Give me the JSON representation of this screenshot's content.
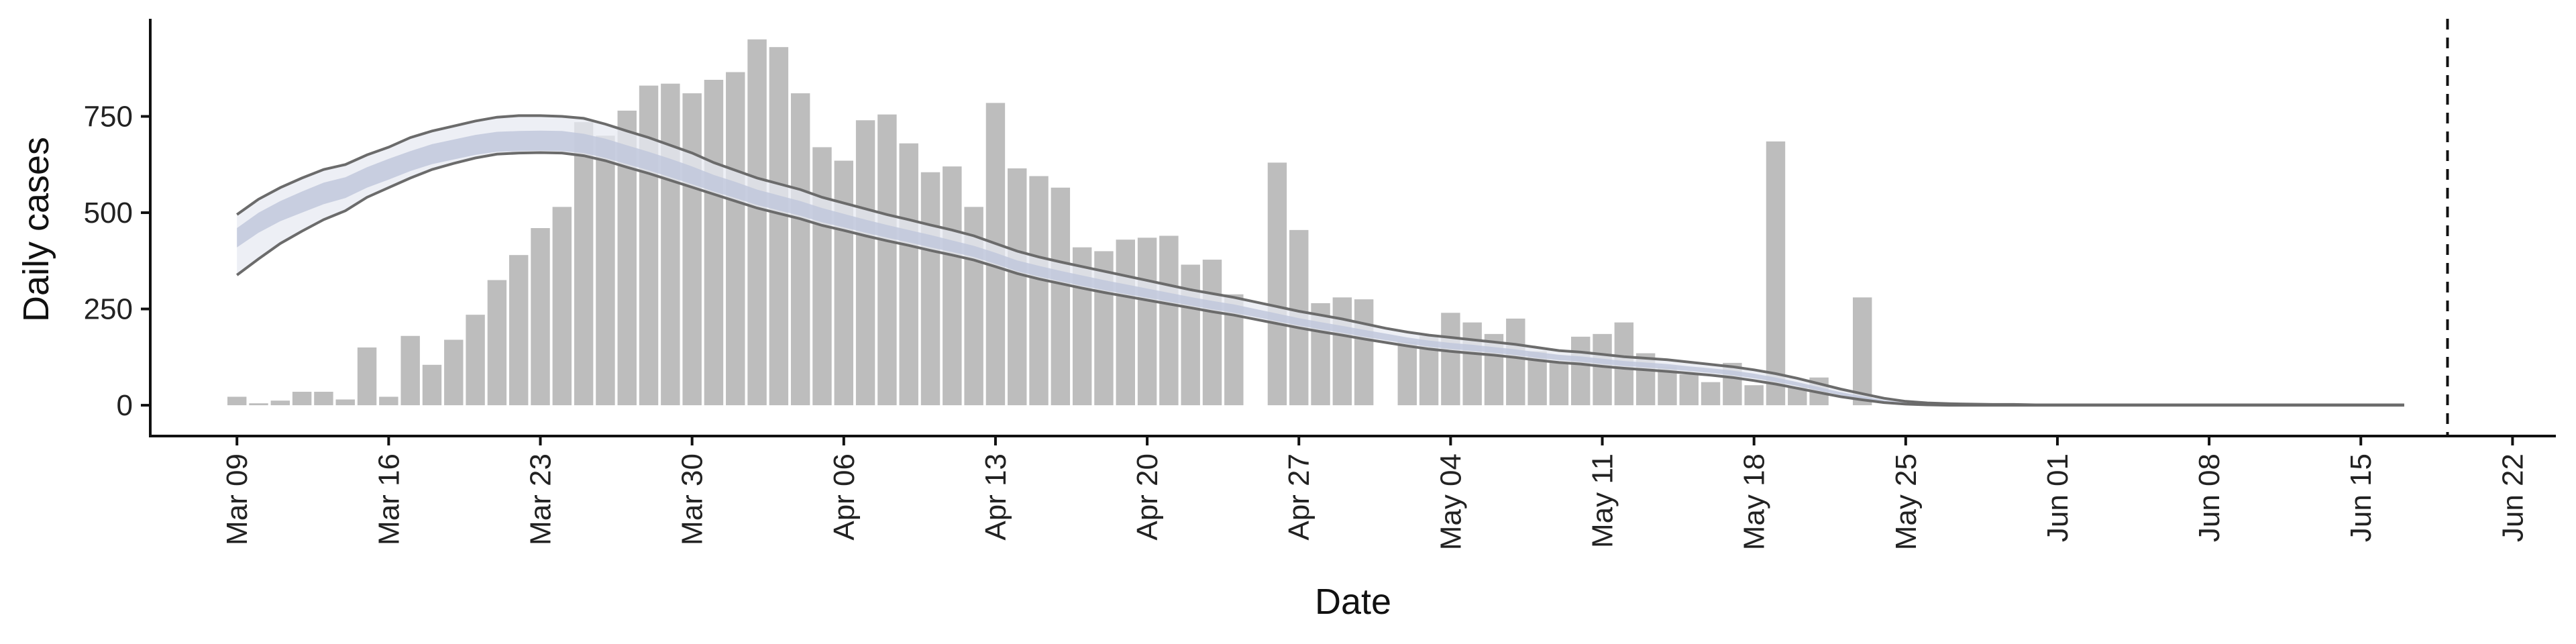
{
  "chart_data": {
    "type": "bar",
    "xlabel": "Date",
    "ylabel": "Daily cases",
    "x_start": "2020-03-09",
    "xlim": [
      "2020-03-05",
      "2020-06-24"
    ],
    "ylim": [
      -80,
      1000
    ],
    "yticks": [
      0,
      250,
      500,
      750
    ],
    "xtick_labels": [
      "Mar 09",
      "Mar 16",
      "Mar 23",
      "Mar 30",
      "Apr 06",
      "Apr 13",
      "Apr 20",
      "Apr 27",
      "May 04",
      "May 11",
      "May 18",
      "May 25",
      "Jun 01",
      "Jun 08",
      "Jun 15",
      "Jun 22"
    ],
    "xtick_dates": [
      "2020-03-09",
      "2020-03-16",
      "2020-03-23",
      "2020-03-30",
      "2020-04-06",
      "2020-04-13",
      "2020-04-20",
      "2020-04-27",
      "2020-05-04",
      "2020-05-11",
      "2020-05-18",
      "2020-05-25",
      "2020-06-01",
      "2020-06-08",
      "2020-06-15",
      "2020-06-22"
    ],
    "vline_date": "2020-06-19",
    "grid": false,
    "legend": "none",
    "colors": {
      "bar": "#bdbdbd",
      "band_outer": "#e7e9f1",
      "band_inner": "#c1c8dc",
      "line": "#6b6b6b",
      "axis": "#111111"
    },
    "bars": [
      22,
      5,
      12,
      35,
      35,
      15,
      150,
      22,
      180,
      105,
      170,
      235,
      325,
      390,
      460,
      515,
      735,
      700,
      765,
      830,
      835,
      810,
      845,
      865,
      950,
      930,
      810,
      670,
      635,
      740,
      755,
      680,
      605,
      620,
      515,
      785,
      615,
      595,
      565,
      410,
      400,
      430,
      435,
      440,
      365,
      378,
      288,
      null,
      630,
      455,
      265,
      280,
      275,
      null,
      165,
      180,
      240,
      215,
      185,
      225,
      140,
      110,
      178,
      185,
      215,
      135,
      100,
      80,
      60,
      110,
      52,
      685,
      48,
      72,
      null,
      280
    ],
    "band_outer_upper": [
      495,
      535,
      565,
      590,
      612,
      625,
      650,
      670,
      695,
      712,
      725,
      738,
      748,
      752,
      752,
      750,
      745,
      730,
      712,
      695,
      675,
      655,
      630,
      610,
      590,
      575,
      560,
      540,
      525,
      510,
      495,
      482,
      468,
      455,
      440,
      420,
      400,
      385,
      372,
      360,
      348,
      336,
      324,
      312,
      300,
      290,
      280,
      268,
      256,
      244,
      234,
      224,
      212,
      200,
      190,
      182,
      176,
      170,
      164,
      158,
      150,
      142,
      138,
      132,
      126,
      122,
      118,
      112,
      106,
      100,
      92,
      82,
      70,
      56,
      42,
      30,
      18,
      10,
      6,
      4,
      3,
      2,
      2,
      1,
      1,
      1,
      1,
      1,
      1,
      1,
      1,
      1,
      1,
      1,
      1,
      1,
      1,
      1,
      1,
      1,
      1
    ],
    "band_inner_upper": [
      460,
      500,
      530,
      555,
      578,
      592,
      618,
      640,
      660,
      678,
      690,
      702,
      710,
      712,
      713,
      712,
      705,
      692,
      675,
      658,
      640,
      620,
      598,
      580,
      560,
      545,
      530,
      512,
      497,
      482,
      468,
      455,
      442,
      428,
      414,
      396,
      376,
      362,
      349,
      337,
      325,
      314,
      303,
      292,
      281,
      271,
      262,
      250,
      238,
      226,
      216,
      206,
      196,
      186,
      176,
      168,
      162,
      157,
      151,
      145,
      138,
      131,
      127,
      121,
      115,
      111,
      107,
      101,
      96,
      90,
      82,
      72,
      60,
      47,
      34,
      23,
      13,
      7,
      4,
      3,
      2,
      1,
      1,
      1,
      1,
      1,
      1,
      1,
      1,
      1,
      1,
      1,
      1,
      1,
      1,
      1,
      1,
      1,
      1,
      1,
      1
    ],
    "band_inner_lower": [
      410,
      448,
      478,
      500,
      522,
      538,
      565,
      586,
      608,
      626,
      638,
      650,
      658,
      660,
      661,
      660,
      655,
      642,
      626,
      610,
      592,
      574,
      555,
      538,
      520,
      506,
      492,
      475,
      462,
      448,
      435,
      423,
      410,
      398,
      385,
      367,
      348,
      334,
      322,
      310,
      299,
      289,
      279,
      269,
      259,
      249,
      240,
      229,
      218,
      207,
      197,
      188,
      178,
      169,
      160,
      152,
      146,
      141,
      136,
      130,
      123,
      117,
      113,
      107,
      102,
      98,
      94,
      89,
      84,
      78,
      70,
      61,
      50,
      38,
      26,
      17,
      9,
      4,
      2,
      1,
      0,
      0,
      0,
      0,
      0,
      0,
      0,
      0,
      0,
      0,
      0,
      0,
      0,
      0,
      0,
      0,
      0,
      0,
      0,
      0,
      0
    ],
    "band_outer_lower": [
      338,
      380,
      420,
      452,
      482,
      505,
      540,
      565,
      590,
      612,
      628,
      642,
      652,
      655,
      656,
      655,
      648,
      635,
      618,
      602,
      584,
      566,
      548,
      530,
      512,
      498,
      484,
      467,
      454,
      440,
      427,
      415,
      402,
      390,
      377,
      360,
      342,
      328,
      316,
      304,
      293,
      283,
      273,
      263,
      253,
      243,
      234,
      223,
      212,
      201,
      191,
      182,
      172,
      163,
      154,
      146,
      140,
      135,
      130,
      124,
      117,
      111,
      107,
      101,
      96,
      92,
      88,
      83,
      78,
      72,
      64,
      55,
      44,
      33,
      22,
      14,
      7,
      3,
      1,
      0,
      0,
      0,
      0,
      0,
      0,
      0,
      0,
      0,
      0,
      0,
      0,
      0,
      0,
      0,
      0,
      0,
      0,
      0,
      0,
      0,
      0
    ]
  }
}
